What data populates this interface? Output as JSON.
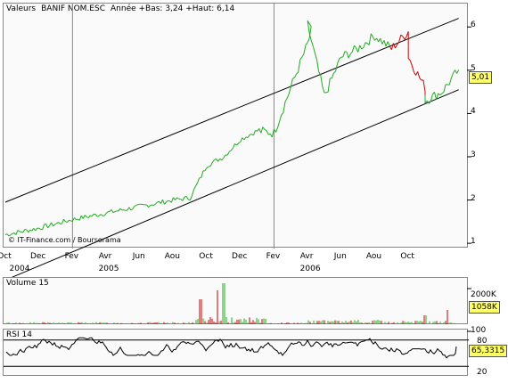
{
  "main": {
    "title": "Valeurs",
    "instrument": "BANIF NOM.ESC",
    "range_label": "Année +Bas: 3,24 +Haut: 6,14",
    "copyright": "© IT-Finance.com / Boursorama",
    "last_price_badge": "5,01",
    "y_ticks": [
      "1",
      "2",
      "3",
      "4",
      "5",
      "6"
    ]
  },
  "x_axis": {
    "month_labels": [
      "Oct",
      "Dec",
      "Fev",
      "Avr",
      "Jun",
      "Aou",
      "Oct",
      "Dec",
      "Fev",
      "Avr",
      "Jun",
      "Aou",
      "Oct"
    ],
    "year_labels": [
      "2004",
      "2005",
      "2006"
    ]
  },
  "volume": {
    "title": "Volume 15",
    "tick": "2000K",
    "badge": "1058K"
  },
  "rsi": {
    "title": "RSI 14",
    "ticks": [
      "100",
      "80",
      "20"
    ],
    "badge": "65,3315"
  },
  "colors": {
    "up": "#22aa22",
    "down": "#cc0000",
    "channel": "#000000",
    "badge_bg": "#ffff66",
    "panel_bg": "#fafafa"
  },
  "chart_data": [
    {
      "type": "line",
      "title": "BANIF NOM.ESC",
      "x": [
        "2004-10",
        "2004-12",
        "2005-02",
        "2005-04",
        "2005-06",
        "2005-08",
        "2005-09",
        "2005-10",
        "2005-11",
        "2005-12",
        "2006-01",
        "2006-02",
        "2006-03",
        "2006-04",
        "2006-04",
        "2006-05",
        "2006-06",
        "2006-07",
        "2006-08",
        "2006-09",
        "2006-10",
        "2006-10",
        "2006-11",
        "2006-11",
        "2006-12",
        "2007-01"
      ],
      "series": [
        {
          "values": [
            1.2,
            1.35,
            1.55,
            1.7,
            1.85,
            2.0,
            2.05,
            2.8,
            3.0,
            3.4,
            3.6,
            3.55,
            4.6,
            5.6,
            6.05,
            4.4,
            5.3,
            5.5,
            5.8,
            5.5,
            5.9,
            5.3,
            4.6,
            4.3,
            4.5,
            5.01
          ]
        }
      ],
      "ylim": [
        1,
        6.5
      ],
      "channel": [
        {
          "x": [
            "2004-10",
            "2007-01"
          ],
          "values": [
            1.95,
            6.2
          ]
        },
        {
          "x": [
            "2004-10",
            "2007-01"
          ],
          "values": [
            0.15,
            4.55
          ]
        }
      ]
    },
    {
      "type": "bar",
      "title": "Volume 15",
      "ylim": [
        0,
        2400
      ]
    },
    {
      "type": "line",
      "title": "RSI 14",
      "ylim": [
        0,
        100
      ],
      "reference_lines": [
        80,
        20
      ]
    }
  ]
}
